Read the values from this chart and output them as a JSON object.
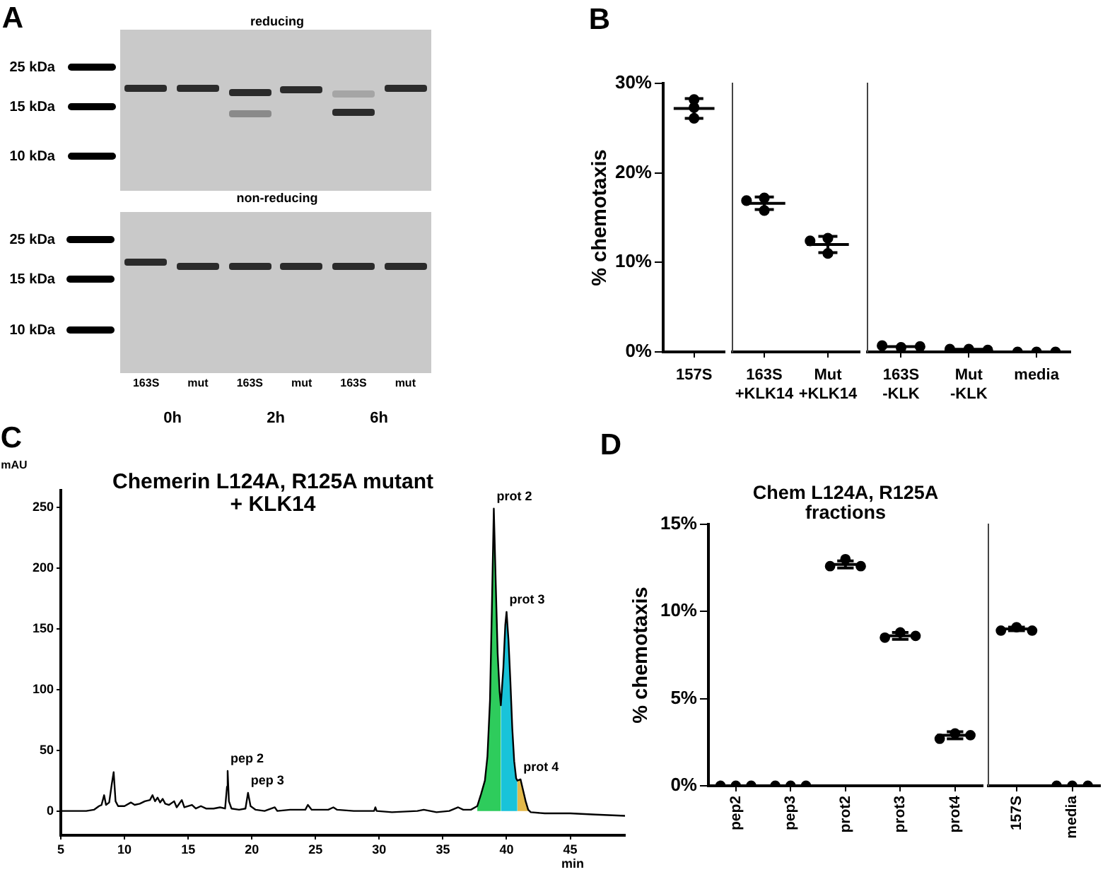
{
  "chart_data": [
    {
      "type": "other",
      "categories": [
        "163S",
        "mut",
        "163S",
        "mut",
        "163S",
        "mut"
      ],
      "annotations": [
        "A",
        "reducing",
        "non-reducing",
        "25 kDa",
        "15 kDa",
        "10 kDa",
        "25 kDa",
        "15 kDa",
        "10 kDa",
        "0h",
        "2h",
        "6h"
      ]
    },
    {
      "type": "scatter",
      "ylabel": "% chemotaxis",
      "annotations": [
        "B"
      ],
      "categories": [
        "157S"
      ],
      "series": [
        {
          "type": "box",
          "boxes": [
            {
              "low": 26.1,
              "q1": 27.2,
              "median": 27.2,
              "q3": 27.2,
              "high": 28.3
            }
          ],
          "color": "#000000"
        },
        {
          "x": [
            "157S",
            "157S",
            "157S"
          ],
          "values": [
            28.2,
            27.3,
            26.1
          ],
          "color": "#000000",
          "marker": "circle"
        }
      ],
      "ylim": [
        0,
        30
      ],
      "yticks": [
        {
          "value": 0,
          "label": "0%"
        },
        {
          "value": 10,
          "label": "10%"
        },
        {
          "value": 20,
          "label": "20%"
        },
        {
          "value": 30,
          "label": "30%"
        }
      ]
    },
    {
      "type": "scatter",
      "categories": [
        "163S +KLK14",
        "Mut +KLK14"
      ],
      "series": [
        {
          "type": "box",
          "boxes": [
            {
              "low": 15.9,
              "q1": 16.6,
              "median": 16.6,
              "q3": 16.6,
              "high": 17.3
            },
            {
              "low": 11.1,
              "q1": 12.0,
              "median": 12.0,
              "q3": 12.0,
              "high": 12.9
            }
          ],
          "color": "#000000"
        },
        {
          "x": [
            "163S +KLK14",
            "163S +KLK14",
            "163S +KLK14",
            "Mut +KLK14",
            "Mut +KLK14",
            "Mut +KLK14"
          ],
          "values": [
            17.2,
            16.9,
            15.8,
            12.7,
            12.4,
            11.0
          ],
          "color": "#000000",
          "marker": "circle"
        }
      ],
      "ylim": [
        0,
        30
      ],
      "tick_labels": "x"
    },
    {
      "type": "scatter",
      "categories": [
        "163S -KLK",
        "Mut -KLK",
        "media"
      ],
      "series": [
        {
          "type": "box",
          "boxes": [
            {
              "low": 0.6,
              "q1": 0.6,
              "median": 0.6,
              "q3": 0.6,
              "high": 0.6
            },
            {
              "low": 0.3,
              "q1": 0.3,
              "median": 0.3,
              "q3": 0.3,
              "high": 0.3
            },
            {
              "low": 0,
              "q1": 0,
              "median": 0,
              "q3": 0,
              "high": 0
            }
          ],
          "color": "#000000"
        },
        {
          "x": [
            "163S -KLK",
            "163S -KLK",
            "163S -KLK",
            "Mut -KLK",
            "Mut -KLK",
            "Mut -KLK",
            "media",
            "media",
            "media"
          ],
          "values": [
            0.5,
            0.7,
            0.6,
            0.3,
            0.3,
            0.2,
            0,
            0,
            0
          ],
          "color": "#000000",
          "marker": "circle"
        }
      ],
      "ylim": [
        0,
        30
      ],
      "tick_labels": "x"
    },
    {
      "type": "line",
      "title": "Chemerin L124A, R125A mutant\n+ KLK14",
      "xlabel": "min",
      "ylabel": "mAU",
      "annotations": [
        "C",
        {
          "text": "pep 2",
          "x": 18.1,
          "y": 33
        },
        {
          "text": "pep 3",
          "x": 19.7,
          "y": 15
        },
        {
          "text": "prot 2",
          "x": 39.0,
          "y": 249
        },
        {
          "text": "prot 3",
          "x": 40.0,
          "y": 164
        },
        {
          "text": "prot 4",
          "x": 41.1,
          "y": 26
        }
      ],
      "series": [
        {
          "x": [
            5,
            6,
            7,
            7.6,
            8,
            8.2,
            8.4,
            8.55,
            8.8,
            9,
            9.15,
            9.3,
            9.5,
            10,
            10.5,
            10.8,
            11.2,
            11.6,
            12,
            12.2,
            12.4,
            12.6,
            12.8,
            13,
            13.2,
            13.5,
            13.9,
            14.1,
            14.5,
            14.7,
            15.3,
            15.6,
            16,
            16.4,
            17,
            17.5,
            17.9,
            18.05,
            18.1,
            18.2,
            18.4,
            19,
            19.5,
            19.7,
            19.9,
            20.3,
            21,
            21.8,
            22,
            23,
            24.2,
            24.4,
            24.7,
            26,
            26.4,
            26.7,
            28,
            29.6,
            29.7,
            29.8,
            31,
            33,
            33.5,
            34.5,
            35.5,
            36.2,
            36.6,
            37.2,
            37.7,
            38,
            38.3,
            38.5,
            38.7,
            38.85,
            39,
            39.15,
            39.3,
            39.45,
            39.55,
            39.75,
            39.9,
            40,
            40.15,
            40.3,
            40.45,
            40.6,
            40.75,
            40.85,
            41.1,
            41.3,
            41.5,
            41.7,
            41.9,
            43,
            45,
            47,
            49.3
          ],
          "values": [
            0,
            0,
            0,
            1,
            4,
            5,
            13,
            5,
            7,
            22,
            32,
            8,
            4,
            4,
            7,
            5,
            6,
            8,
            9,
            13,
            8,
            11,
            7,
            10,
            6,
            5,
            8,
            3,
            9,
            3,
            5,
            2,
            4,
            2,
            2,
            3,
            2,
            20,
            33,
            8,
            2,
            1,
            2,
            15,
            4,
            1,
            0,
            3,
            0,
            1,
            1,
            5,
            1,
            1,
            3,
            1,
            0,
            0,
            3,
            0,
            -1,
            0,
            1,
            -1,
            0,
            3,
            1,
            1,
            4,
            14,
            25,
            45,
            91,
            168,
            249,
            188,
            130,
            99,
            87,
            118,
            153,
            164,
            141,
            107,
            68,
            41,
            27,
            25,
            26,
            17,
            8,
            1,
            -1,
            -2,
            -2,
            -3,
            -4
          ],
          "color": "#000000"
        },
        {
          "type": "area",
          "x": [
            37.7,
            38,
            38.3,
            38.5,
            38.7,
            38.85,
            39,
            39.15,
            39.3,
            39.45,
            39.55
          ],
          "values": [
            4,
            14,
            25,
            45,
            91,
            168,
            249,
            188,
            130,
            99,
            87
          ],
          "color": "#2ecc5c"
        },
        {
          "type": "area",
          "x": [
            39.55,
            39.75,
            39.9,
            40,
            40.15,
            40.3,
            40.45,
            40.6,
            40.75,
            40.85
          ],
          "values": [
            87,
            118,
            153,
            164,
            141,
            107,
            68,
            41,
            27,
            25
          ],
          "color": "#19c3d9"
        },
        {
          "type": "area",
          "x": [
            40.85,
            41.1,
            41.3,
            41.5,
            41.7
          ],
          "values": [
            25,
            26,
            17,
            8,
            1
          ],
          "color": "#e3b94b"
        }
      ],
      "xlim": [
        5,
        49.3
      ],
      "xticks": [
        5,
        10,
        15,
        20,
        25,
        30,
        35,
        40,
        45
      ],
      "ylim": [
        -20,
        264
      ],
      "yticks": [
        0,
        50,
        100,
        150,
        200,
        250
      ]
    },
    {
      "type": "scatter",
      "title": "Chem L124A, R125A\nfractions",
      "ylabel": "% chemotaxis",
      "annotations": [
        "D"
      ],
      "categories": [
        "pep2",
        "pep3",
        "prot2",
        "prot3",
        "prot4"
      ],
      "series": [
        {
          "type": "box",
          "boxes": [
            {
              "low": 0,
              "q1": 0,
              "median": 0,
              "q3": 0,
              "high": 0
            },
            {
              "low": 0,
              "q1": 0,
              "median": 0,
              "q3": 0,
              "high": 0
            },
            {
              "low": 12.5,
              "q1": 12.7,
              "median": 12.7,
              "q3": 12.7,
              "high": 12.9
            },
            {
              "low": 8.4,
              "q1": 8.6,
              "median": 8.6,
              "q3": 8.6,
              "high": 8.8
            },
            {
              "low": 2.7,
              "q1": 2.9,
              "median": 2.9,
              "q3": 2.9,
              "high": 3.1
            }
          ],
          "color": "#000000"
        },
        {
          "x": [
            "pep2",
            "pep2",
            "pep2",
            "pep3",
            "pep3",
            "pep3",
            "prot2",
            "prot2",
            "prot2",
            "prot3",
            "prot3",
            "prot3",
            "prot4",
            "prot4",
            "prot4"
          ],
          "values": [
            0,
            0,
            0,
            0,
            0,
            0,
            13.0,
            12.6,
            12.6,
            8.8,
            8.5,
            8.6,
            3.0,
            2.7,
            2.9
          ],
          "color": "#000000",
          "marker": "circle"
        }
      ],
      "ylim": [
        0,
        15
      ],
      "yticks": [
        {
          "value": 0,
          "label": "0%"
        },
        {
          "value": 5,
          "label": "5%"
        },
        {
          "value": 10,
          "label": "10%"
        },
        {
          "value": 15,
          "label": "15%"
        }
      ]
    },
    {
      "type": "scatter",
      "categories": [
        "157S",
        "media"
      ],
      "series": [
        {
          "type": "box",
          "boxes": [
            {
              "low": 8.9,
              "q1": 9.0,
              "median": 9.0,
              "q3": 9.0,
              "high": 9.1
            },
            {
              "low": 0,
              "q1": 0,
              "median": 0,
              "q3": 0,
              "high": 0
            }
          ],
          "color": "#000000"
        },
        {
          "x": [
            "157S",
            "157S",
            "157S",
            "media",
            "media",
            "media"
          ],
          "values": [
            9.1,
            8.9,
            8.9,
            0,
            0,
            0
          ],
          "color": "#000000",
          "marker": "circle"
        }
      ],
      "ylim": [
        0,
        15
      ],
      "tick_labels": "x"
    }
  ]
}
